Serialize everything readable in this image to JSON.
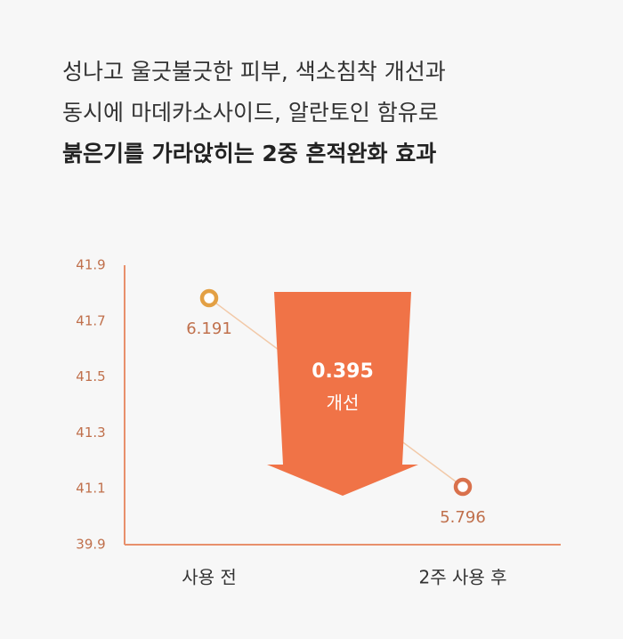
{
  "chart_data": {
    "type": "line",
    "title": [
      "성나고 울긋불긋한 피부, 색소침착 개선과",
      "동시에  마데카소사이드, 알란토인 함유로",
      "붉은기를 가라앉히는 2중 흔적완화 효과"
    ],
    "categories": [
      "사용 전",
      "2주 사용 후"
    ],
    "values": [
      6.191,
      5.796
    ],
    "yticks": [
      39.9,
      41.1,
      41.3,
      41.5,
      41.7,
      41.9
    ],
    "annotation": {
      "value": 0.395,
      "label": "개선"
    },
    "colors": [
      "#e3a044",
      "#d9714c"
    ],
    "color": "#f2c9a8",
    "arrow_color": "#f07347",
    "axis_color": "#e8906c"
  }
}
